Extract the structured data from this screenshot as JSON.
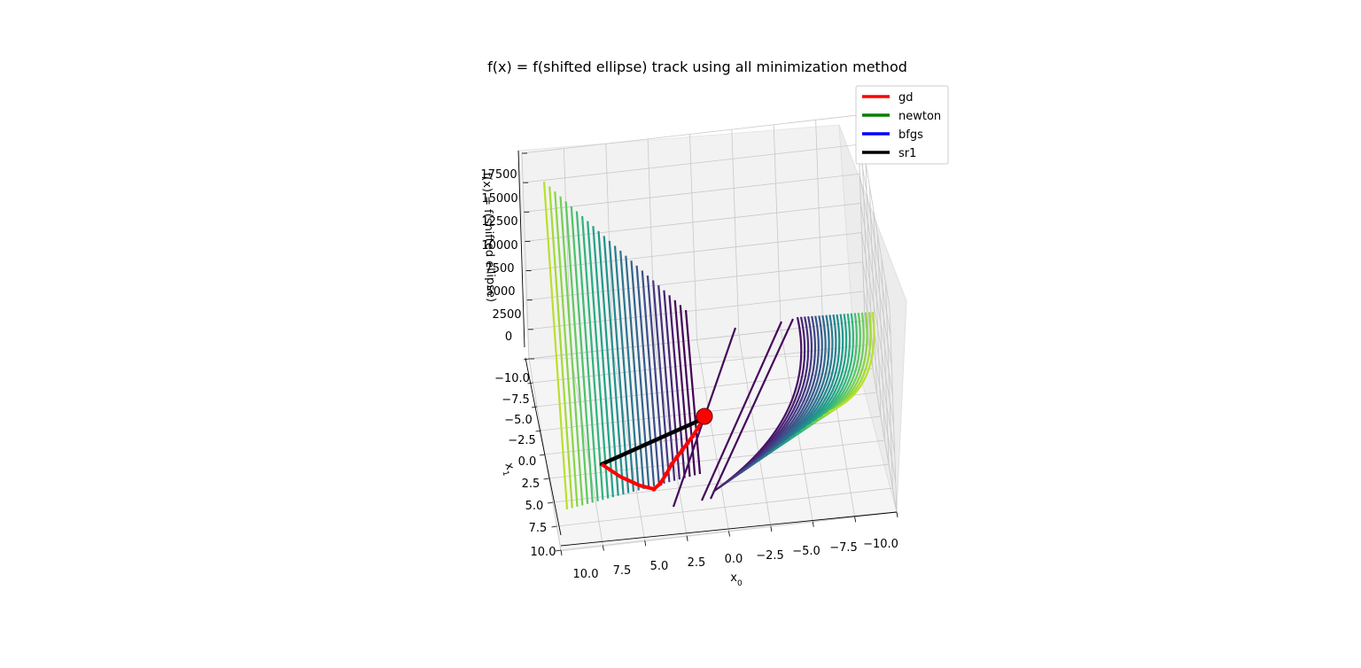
{
  "chart_data": {
    "type": "surface3d",
    "title": "f(x) = f(shifted ellipse) track using all minimization method",
    "xlabel": "x0",
    "ylabel": "x1",
    "zlabel": "f(x) = f(shifted ellipse)",
    "x_ticks": [
      "10.0",
      "7.5",
      "5.0",
      "2.5",
      "0.0",
      "−2.5",
      "−5.0",
      "−7.5",
      "−10.0"
    ],
    "y_ticks": [
      "−10.0",
      "−7.5",
      "−5.0",
      "−2.5",
      "0.0",
      "2.5",
      "5.0",
      "7.5",
      "10.0"
    ],
    "z_ticks": [
      "17500",
      "15000",
      "12500",
      "10000",
      "7500",
      "5000",
      "2500",
      "0"
    ],
    "xlim": [
      -10,
      10
    ],
    "ylim": [
      -10,
      10
    ],
    "zlim": [
      0,
      17500
    ],
    "colormap": "viridis",
    "grid": true,
    "legend_position": "upper-right",
    "series": [
      {
        "name": "gd",
        "color": "#ff0000"
      },
      {
        "name": "newton",
        "color": "#008000"
      },
      {
        "name": "bfgs",
        "color": "#0000ff"
      },
      {
        "name": "sr1",
        "color": "#000000"
      }
    ],
    "start_point": {
      "x0": 0,
      "x1": -4.5,
      "color": "#ff0000"
    }
  }
}
